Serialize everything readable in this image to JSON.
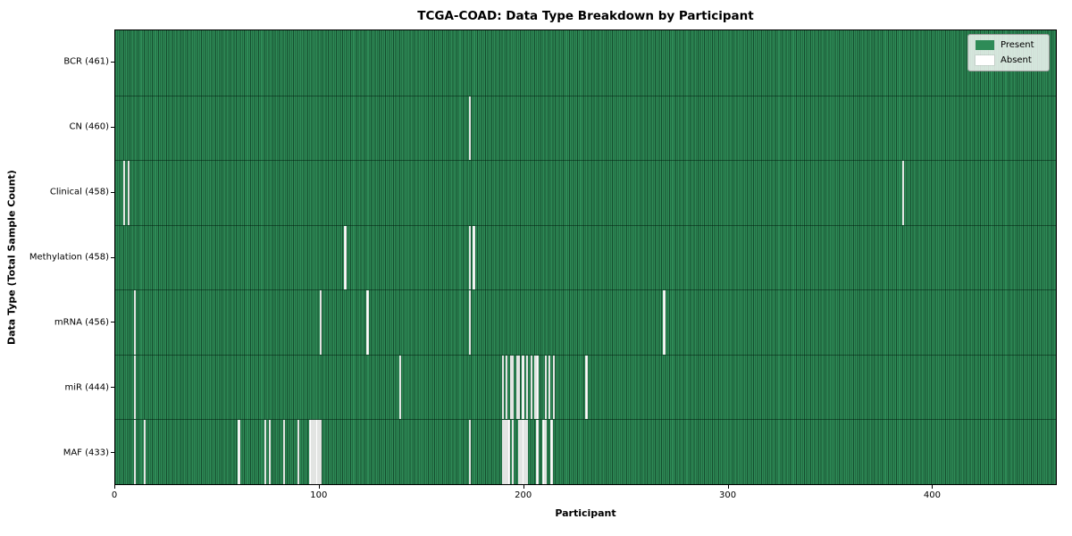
{
  "title": "TCGA-COAD: Data Type Breakdown by Participant",
  "chart_data": {
    "type": "heatmap",
    "title": "TCGA-COAD: Data Type Breakdown by Participant",
    "xlabel": "Participant",
    "ylabel": "Data Type (Total Sample Count)",
    "n_participants": 461,
    "x_ticks": [
      0,
      100,
      200,
      300,
      400
    ],
    "grid": false,
    "legend_position": "upper right",
    "legend": [
      {
        "label": "Present",
        "color": "#2e8b57"
      },
      {
        "label": "Absent",
        "color": "#ffffff"
      }
    ],
    "colors": {
      "present": "#2e8b57",
      "absent": "#ffffff"
    },
    "rows": [
      {
        "name": "BCR",
        "label": "BCR (461)",
        "total": 461,
        "absent_participants": []
      },
      {
        "name": "CN",
        "label": "CN (460)",
        "total": 460,
        "absent_participants": [
          173
        ]
      },
      {
        "name": "Clinical",
        "label": "Clinical (458)",
        "total": 458,
        "absent_participants": [
          4,
          6,
          385
        ]
      },
      {
        "name": "Methylation",
        "label": "Methylation (458)",
        "total": 458,
        "absent_participants": [
          112,
          173,
          175
        ]
      },
      {
        "name": "mRNA",
        "label": "mRNA (456)",
        "total": 456,
        "absent_participants": [
          9,
          100,
          123,
          173,
          268
        ]
      },
      {
        "name": "miR",
        "label": "miR (444)",
        "total": 444,
        "absent_participants": [
          9,
          139,
          189,
          191,
          193,
          194,
          196,
          197,
          199,
          201,
          203,
          205,
          206,
          210,
          212,
          214,
          230
        ]
      },
      {
        "name": "MAF",
        "label": "MAF (433)",
        "total": 433,
        "absent_participants": [
          9,
          14,
          60,
          73,
          75,
          82,
          89,
          95,
          96,
          97,
          98,
          99,
          100,
          173,
          189,
          190,
          191,
          192,
          194,
          197,
          198,
          199,
          200,
          201,
          206,
          209,
          210,
          213
        ]
      }
    ]
  }
}
